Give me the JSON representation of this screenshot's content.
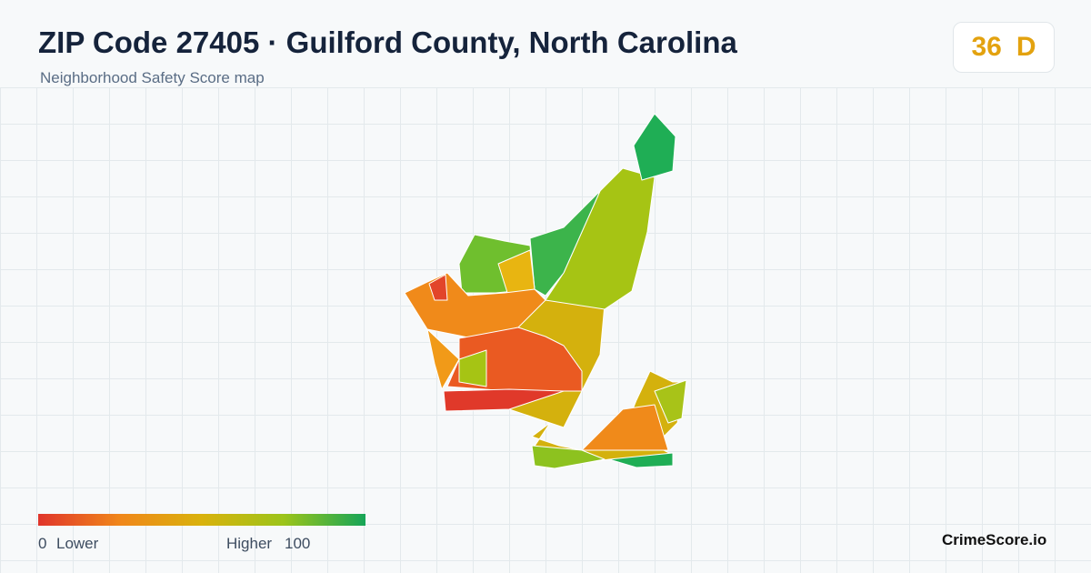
{
  "header": {
    "title": "ZIP Code 27405 · Guilford County, North Carolina",
    "subtitle": "Neighborhood Safety Score map"
  },
  "score": {
    "value": 36,
    "grade": "D",
    "color": "#e3a20f"
  },
  "legend": {
    "min": 0,
    "min_label": "Lower",
    "max_label": "Higher",
    "max": 100,
    "colors": [
      "#e0352b",
      "#f0871a",
      "#d9b20c",
      "#9cc41a",
      "#16a558"
    ]
  },
  "brand": "CrimeScore.io"
}
